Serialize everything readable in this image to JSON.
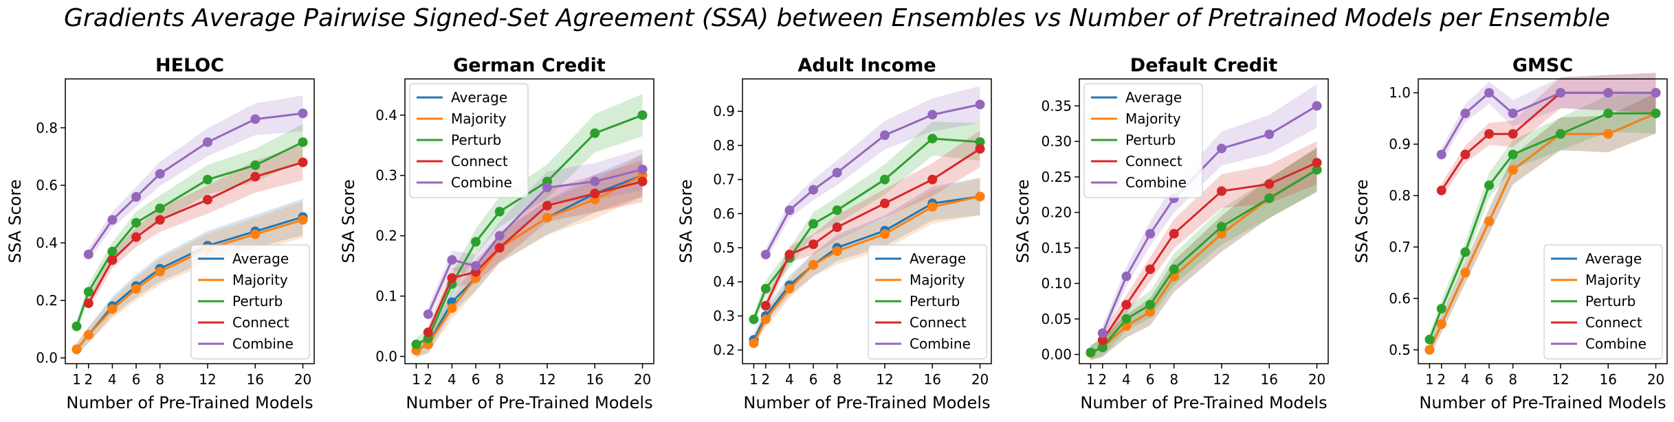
{
  "suptitle": "Gradients Average Pairwise Signed-Set Agreement (SSA) between Ensembles vs Number of Pretrained Models per Ensemble",
  "colors": {
    "Average": "#1f77b4",
    "Majority": "#ff7f0e",
    "Perturb": "#2ca02c",
    "Connect": "#d62728",
    "Combine": "#9467bd"
  },
  "chart_data": [
    {
      "type": "line",
      "title": "HELOC",
      "xlabel": "Number of Pre-Trained Models",
      "ylabel": "SSA Score",
      "x": [
        1,
        2,
        4,
        6,
        8,
        12,
        16,
        20
      ],
      "xticks": [
        1,
        2,
        4,
        6,
        8,
        12,
        16,
        20
      ],
      "ylim": [
        -0.02,
        0.97
      ],
      "yticks": [
        0.0,
        0.2,
        0.4,
        0.6,
        0.8
      ],
      "legend": "lower right",
      "series": [
        {
          "name": "Average",
          "values": [
            0.03,
            0.08,
            0.18,
            0.25,
            0.31,
            0.39,
            0.44,
            0.49
          ]
        },
        {
          "name": "Majority",
          "values": [
            0.03,
            0.08,
            0.17,
            0.24,
            0.3,
            0.38,
            0.43,
            0.48
          ]
        },
        {
          "name": "Perturb",
          "values": [
            0.11,
            0.23,
            0.37,
            0.47,
            0.52,
            0.62,
            0.67,
            0.75
          ]
        },
        {
          "name": "Connect",
          "values": [
            null,
            0.19,
            0.34,
            0.42,
            0.48,
            0.55,
            0.63,
            0.68
          ]
        },
        {
          "name": "Combine",
          "values": [
            null,
            0.36,
            0.48,
            0.56,
            0.64,
            0.75,
            0.83,
            0.85
          ]
        }
      ]
    },
    {
      "type": "line",
      "title": "German Credit",
      "xlabel": "Number of Pre-Trained Models",
      "ylabel": "SSA Score",
      "x": [
        1,
        2,
        4,
        6,
        8,
        12,
        16,
        20
      ],
      "xticks": [
        1,
        2,
        4,
        6,
        8,
        12,
        16,
        20
      ],
      "ylim": [
        -0.012,
        0.46
      ],
      "yticks": [
        0.0,
        0.1,
        0.2,
        0.3,
        0.4
      ],
      "legend": "upper left",
      "series": [
        {
          "name": "Average",
          "values": [
            0.01,
            0.02,
            0.09,
            0.13,
            0.18,
            0.23,
            0.27,
            0.3
          ]
        },
        {
          "name": "Majority",
          "values": [
            0.01,
            0.02,
            0.08,
            0.13,
            0.18,
            0.23,
            0.26,
            0.3
          ]
        },
        {
          "name": "Perturb",
          "values": [
            0.02,
            0.03,
            0.12,
            0.19,
            0.24,
            0.29,
            0.37,
            0.4
          ]
        },
        {
          "name": "Connect",
          "values": [
            null,
            0.04,
            0.13,
            0.14,
            0.18,
            0.25,
            0.27,
            0.29
          ]
        },
        {
          "name": "Combine",
          "values": [
            null,
            0.07,
            0.16,
            0.15,
            0.2,
            0.28,
            0.29,
            0.31
          ]
        }
      ]
    },
    {
      "type": "line",
      "title": "Adult Income",
      "xlabel": "Number of Pre-Trained Models",
      "ylabel": "SSA Score",
      "x": [
        1,
        2,
        4,
        6,
        8,
        12,
        16,
        20
      ],
      "xticks": [
        1,
        2,
        4,
        6,
        8,
        12,
        16,
        20
      ],
      "ylim": [
        0.16,
        0.995
      ],
      "yticks": [
        0.2,
        0.3,
        0.4,
        0.5,
        0.6,
        0.7,
        0.8,
        0.9
      ],
      "legend": "lower right",
      "series": [
        {
          "name": "Average",
          "values": [
            0.23,
            0.3,
            0.39,
            0.45,
            0.5,
            0.55,
            0.63,
            0.65
          ]
        },
        {
          "name": "Majority",
          "values": [
            0.22,
            0.29,
            0.38,
            0.45,
            0.49,
            0.54,
            0.62,
            0.65
          ]
        },
        {
          "name": "Perturb",
          "values": [
            0.29,
            0.38,
            0.47,
            0.57,
            0.61,
            0.7,
            0.82,
            0.81
          ]
        },
        {
          "name": "Connect",
          "values": [
            null,
            0.33,
            0.48,
            0.51,
            0.56,
            0.63,
            0.7,
            0.79
          ]
        },
        {
          "name": "Combine",
          "values": [
            null,
            0.48,
            0.61,
            0.67,
            0.72,
            0.83,
            0.89,
            0.92
          ]
        }
      ]
    },
    {
      "type": "line",
      "title": "Default Credit",
      "xlabel": "Number of Pre-Trained Models",
      "ylabel": "SSA Score",
      "x": [
        1,
        2,
        4,
        6,
        8,
        12,
        16,
        20
      ],
      "xticks": [
        1,
        2,
        4,
        6,
        8,
        12,
        16,
        20
      ],
      "ylim": [
        -0.013,
        0.388
      ],
      "yticks": [
        0.0,
        0.05,
        0.1,
        0.15,
        0.2,
        0.25,
        0.3,
        0.35
      ],
      "ytick_labels": [
        "0.00",
        "0.05",
        "0.10",
        "0.15",
        "0.20",
        "0.25",
        "0.30",
        "0.35"
      ],
      "legend": "upper left",
      "series": [
        {
          "name": "Average",
          "values": [
            0.002,
            0.01,
            0.04,
            0.06,
            0.11,
            0.17,
            0.22,
            0.26
          ]
        },
        {
          "name": "Majority",
          "values": [
            0.002,
            0.01,
            0.04,
            0.06,
            0.11,
            0.17,
            0.22,
            0.26
          ]
        },
        {
          "name": "Perturb",
          "values": [
            0.003,
            0.01,
            0.05,
            0.07,
            0.12,
            0.18,
            0.22,
            0.26
          ]
        },
        {
          "name": "Connect",
          "values": [
            null,
            0.02,
            0.07,
            0.12,
            0.17,
            0.23,
            0.24,
            0.27
          ]
        },
        {
          "name": "Combine",
          "values": [
            null,
            0.03,
            0.11,
            0.17,
            0.22,
            0.29,
            0.31,
            0.35
          ]
        }
      ]
    },
    {
      "type": "line",
      "title": "GMSC",
      "xlabel": "Number of Pre-Trained Models",
      "ylabel": "SSA Score",
      "x": [
        1,
        2,
        4,
        6,
        8,
        12,
        16,
        20
      ],
      "xticks": [
        1,
        2,
        4,
        6,
        8,
        12,
        16,
        20
      ],
      "ylim": [
        0.473,
        1.027
      ],
      "yticks": [
        0.5,
        0.6,
        0.7,
        0.8,
        0.9,
        1.0
      ],
      "legend": "lower right",
      "series": [
        {
          "name": "Average",
          "values": [
            0.5,
            0.55,
            0.65,
            0.75,
            0.85,
            0.92,
            0.92,
            0.96
          ]
        },
        {
          "name": "Majority",
          "values": [
            0.5,
            0.55,
            0.65,
            0.75,
            0.85,
            0.92,
            0.92,
            0.96
          ]
        },
        {
          "name": "Perturb",
          "values": [
            0.52,
            0.58,
            0.69,
            0.82,
            0.88,
            0.92,
            0.96,
            0.96
          ]
        },
        {
          "name": "Connect",
          "values": [
            null,
            0.81,
            0.88,
            0.92,
            0.92,
            1.0,
            1.0,
            1.0
          ]
        },
        {
          "name": "Combine",
          "values": [
            null,
            0.88,
            0.96,
            1.0,
            0.96,
            1.0,
            1.0,
            1.0
          ]
        }
      ]
    }
  ]
}
